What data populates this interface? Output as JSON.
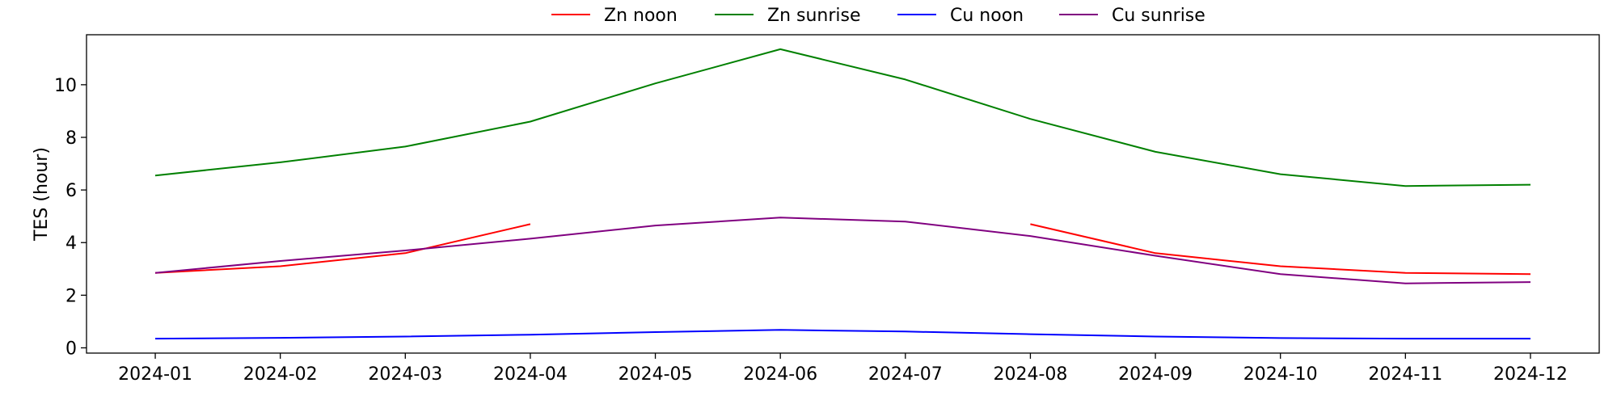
{
  "chart_data": {
    "type": "line",
    "title": "",
    "xlabel": "",
    "ylabel": "TES (hour)",
    "x": [
      "2024-01",
      "2024-02",
      "2024-03",
      "2024-04",
      "2024-05",
      "2024-06",
      "2024-07",
      "2024-08",
      "2024-09",
      "2024-10",
      "2024-11",
      "2024-12"
    ],
    "xlim": [
      -0.55,
      11.55
    ],
    "ylim": [
      -0.2,
      11.9
    ],
    "yticks": [
      0,
      2,
      4,
      6,
      8,
      10
    ],
    "grid": false,
    "legend": "top-center, outside plot",
    "series": [
      {
        "name": "Zn noon",
        "color": "#ff0000",
        "values": [
          2.85,
          3.1,
          3.6,
          4.7,
          null,
          null,
          null,
          4.7,
          3.6,
          3.1,
          2.85,
          2.8
        ]
      },
      {
        "name": "Zn sunrise",
        "color": "#008000",
        "values": [
          6.55,
          7.05,
          7.65,
          8.6,
          10.05,
          11.35,
          10.2,
          8.7,
          7.45,
          6.6,
          6.15,
          6.2
        ]
      },
      {
        "name": "Cu noon",
        "color": "#0000ff",
        "values": [
          0.35,
          0.38,
          0.43,
          0.5,
          0.6,
          0.68,
          0.62,
          0.52,
          0.43,
          0.37,
          0.35,
          0.35
        ]
      },
      {
        "name": "Cu sunrise",
        "color": "#800080",
        "values": [
          2.85,
          3.3,
          3.7,
          4.15,
          4.65,
          4.95,
          4.8,
          4.25,
          3.5,
          2.8,
          2.45,
          2.5
        ]
      }
    ]
  }
}
